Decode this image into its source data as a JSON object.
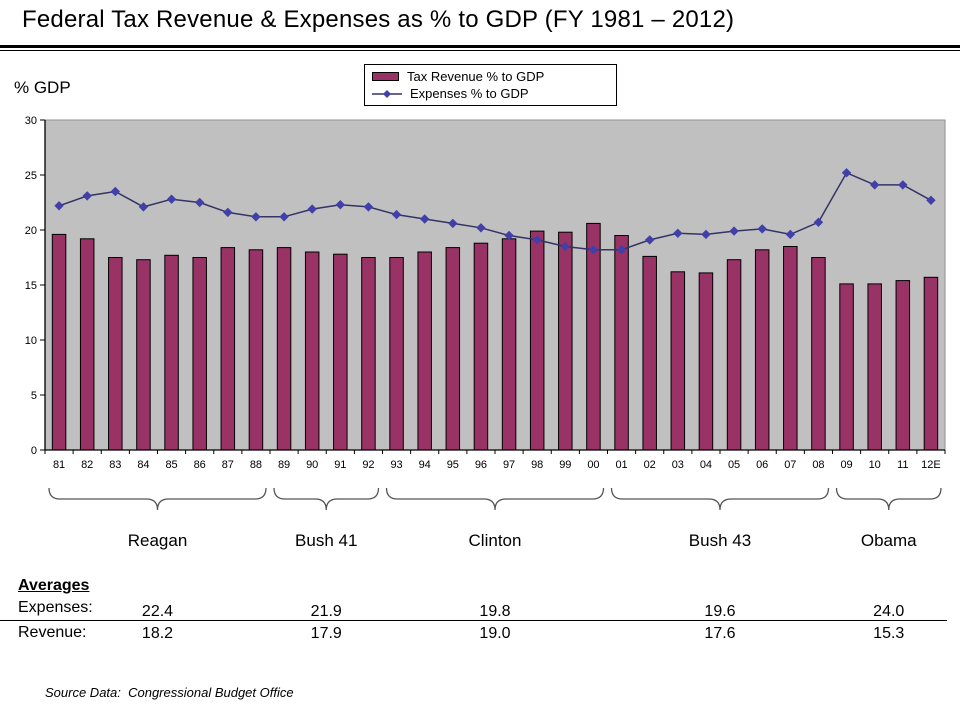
{
  "title": "Federal Tax Revenue & Expenses as % to GDP (FY 1981 – 2012)",
  "y_axis_title": "% GDP",
  "legend": {
    "bar_label": "Tax Revenue % to GDP",
    "line_label": "Expenses % to GDP"
  },
  "chart_data": {
    "type": "bar",
    "subtype": "bar-and-line-combo",
    "title": "Federal Tax Revenue & Expenses as % to GDP (FY 1981 – 2012)",
    "xlabel": "",
    "ylabel": "% GDP",
    "ylim": [
      0,
      30
    ],
    "yticks": [
      0,
      5,
      10,
      15,
      20,
      25,
      30
    ],
    "grid": false,
    "legend_position": "top-center",
    "plot_bg": "#C0C0C0",
    "plot_border": "#909090",
    "categories": [
      "81",
      "82",
      "83",
      "84",
      "85",
      "86",
      "87",
      "88",
      "89",
      "90",
      "91",
      "92",
      "93",
      "94",
      "95",
      "96",
      "97",
      "98",
      "99",
      "00",
      "01",
      "02",
      "03",
      "04",
      "05",
      "06",
      "07",
      "08",
      "09",
      "10",
      "11",
      "12E"
    ],
    "series": [
      {
        "name": "Tax Revenue % to GDP",
        "type": "bar",
        "color": "#993366",
        "values": [
          19.6,
          19.2,
          17.5,
          17.3,
          17.7,
          17.5,
          18.4,
          18.2,
          18.4,
          18.0,
          17.8,
          17.5,
          17.5,
          18.0,
          18.4,
          18.8,
          19.2,
          19.9,
          19.8,
          20.6,
          19.5,
          17.6,
          16.2,
          16.1,
          17.3,
          18.2,
          18.5,
          17.5,
          15.1,
          15.1,
          15.4,
          15.7
        ]
      },
      {
        "name": "Expenses % to GDP",
        "type": "line",
        "color": "#333366",
        "marker": "diamond",
        "marker_color": "#4040A8",
        "values": [
          22.2,
          23.1,
          23.5,
          22.1,
          22.8,
          22.5,
          21.6,
          21.2,
          21.2,
          21.9,
          22.3,
          22.1,
          21.4,
          21.0,
          20.6,
          20.2,
          19.5,
          19.1,
          18.5,
          18.2,
          18.2,
          19.1,
          19.7,
          19.6,
          19.9,
          20.1,
          19.6,
          20.7,
          25.2,
          24.1,
          24.1,
          22.7
        ]
      }
    ]
  },
  "presidents": [
    {
      "name": "Reagan",
      "from": "81",
      "to": "88"
    },
    {
      "name": "Bush 41",
      "from": "89",
      "to": "92"
    },
    {
      "name": "Clinton",
      "from": "93",
      "to": "00"
    },
    {
      "name": "Bush 43",
      "from": "01",
      "to": "08"
    },
    {
      "name": "Obama",
      "from": "09",
      "to": "12E"
    }
  ],
  "averages": {
    "heading": "Averages",
    "expenses_label": "Expenses:",
    "revenue_label": "Revenue:",
    "expenses": [
      "22.4",
      "21.9",
      "19.8",
      "19.6",
      "24.0"
    ],
    "revenue": [
      "18.2",
      "17.9",
      "19.0",
      "17.6",
      "15.3"
    ]
  },
  "source": "Source Data:  Congressional Budget Office"
}
